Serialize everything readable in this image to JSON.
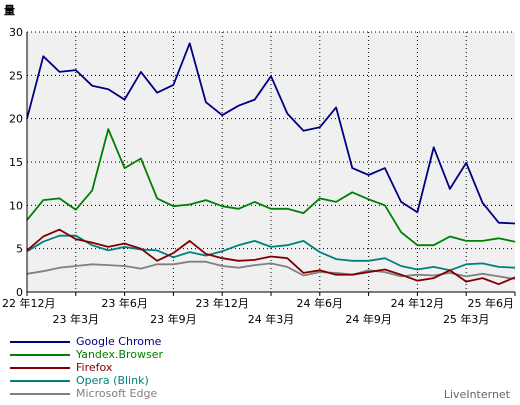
{
  "chart_data": {
    "type": "line",
    "title": "",
    "ylabel": "量",
    "xlabel": "",
    "ylim": [
      0,
      30
    ],
    "yticks": [
      0,
      5,
      10,
      15,
      20,
      25,
      30
    ],
    "grid": true,
    "legend_position": "bottom-left",
    "x_tick_labels": [
      {
        "i": 0,
        "label": "22 年12月",
        "row": 1
      },
      {
        "i": 3,
        "label": "23 年3月",
        "row": 2
      },
      {
        "i": 6,
        "label": "23 年6月",
        "row": 1
      },
      {
        "i": 9,
        "label": "23 年9月",
        "row": 2
      },
      {
        "i": 12,
        "label": "23 年12月",
        "row": 1
      },
      {
        "i": 15,
        "label": "24 年3月",
        "row": 2
      },
      {
        "i": 18,
        "label": "24 年6月",
        "row": 1
      },
      {
        "i": 21,
        "label": "24 年9月",
        "row": 2
      },
      {
        "i": 24,
        "label": "24 年12月",
        "row": 1
      },
      {
        "i": 27,
        "label": "25 年3月",
        "row": 2
      },
      {
        "i": 30,
        "label": "25 年6月",
        "row": 1
      }
    ],
    "n_points": 31,
    "series": [
      {
        "name": "Google Chrome",
        "color": "#000080",
        "values": [
          20.0,
          27.2,
          25.4,
          25.6,
          23.8,
          23.4,
          22.2,
          25.4,
          23.0,
          23.9,
          28.7,
          21.9,
          20.4,
          21.5,
          22.2,
          24.9,
          20.6,
          18.6,
          19.0,
          21.3,
          14.3,
          13.5,
          14.3,
          10.4,
          9.2,
          16.7,
          11.9,
          14.9,
          10.3,
          8.0,
          7.9
        ]
      },
      {
        "name": "Yandex.Browser",
        "color": "#008000",
        "values": [
          8.3,
          10.6,
          10.8,
          9.5,
          11.7,
          18.8,
          14.3,
          15.4,
          10.8,
          9.9,
          10.1,
          10.6,
          9.9,
          9.6,
          10.4,
          9.6,
          9.6,
          9.1,
          10.8,
          10.4,
          11.5,
          10.7,
          10.0,
          6.9,
          5.4,
          5.4,
          6.4,
          5.9,
          5.9,
          6.2,
          5.8
        ]
      },
      {
        "name": "Firefox",
        "color": "#800000",
        "values": [
          4.8,
          6.4,
          7.2,
          6.1,
          5.7,
          5.2,
          5.6,
          5.0,
          3.6,
          4.5,
          5.9,
          4.4,
          3.9,
          3.6,
          3.7,
          4.1,
          3.9,
          2.2,
          2.5,
          2.0,
          2.0,
          2.3,
          2.6,
          2.0,
          1.3,
          1.6,
          2.5,
          1.2,
          1.6,
          0.9,
          1.7
        ]
      },
      {
        "name": "Opera (Blink)",
        "color": "#008080",
        "values": [
          4.7,
          5.8,
          6.5,
          6.5,
          5.4,
          4.8,
          5.2,
          4.9,
          4.8,
          4.0,
          4.6,
          4.2,
          4.7,
          5.4,
          5.9,
          5.2,
          5.4,
          5.9,
          4.6,
          3.8,
          3.6,
          3.6,
          3.9,
          3.0,
          2.6,
          2.9,
          2.5,
          3.2,
          3.3,
          2.9,
          2.8
        ]
      },
      {
        "name": "Microsoft Edge",
        "color": "#808080",
        "values": [
          2.1,
          2.4,
          2.8,
          3.0,
          3.2,
          3.1,
          3.0,
          2.7,
          3.2,
          3.2,
          3.5,
          3.5,
          3.0,
          2.8,
          3.1,
          3.3,
          2.9,
          1.9,
          2.3,
          2.2,
          2.0,
          2.5,
          2.3,
          1.8,
          2.0,
          1.9,
          2.2,
          1.8,
          2.1,
          1.8,
          1.5
        ]
      }
    ]
  },
  "credit": "LiveInternet"
}
